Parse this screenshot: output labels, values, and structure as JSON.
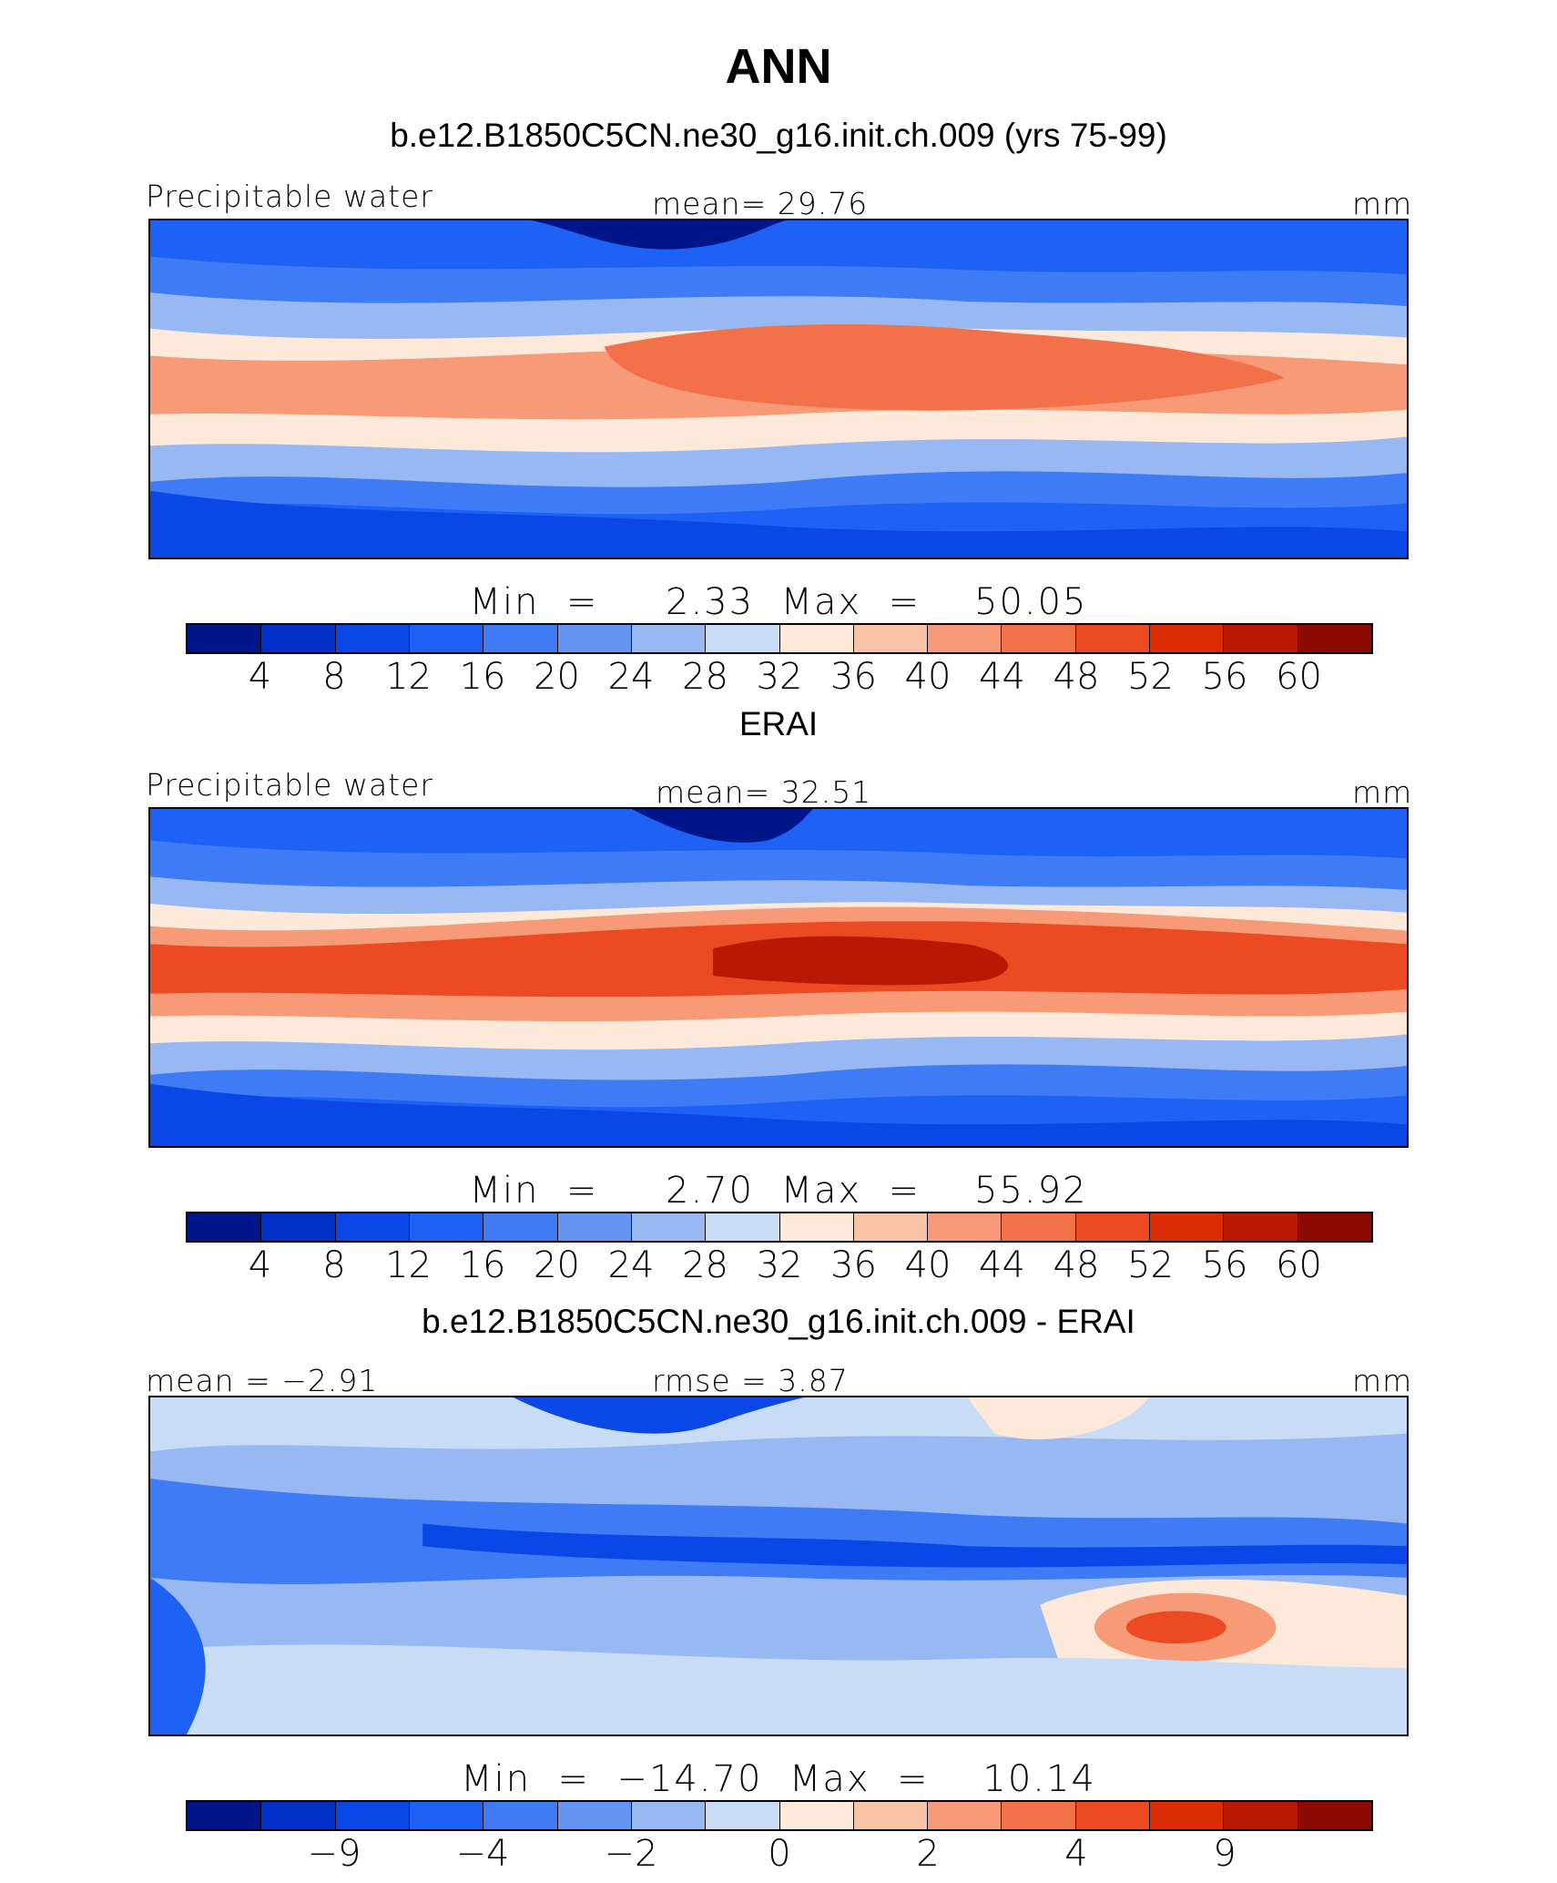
{
  "figure": {
    "title": "ANN"
  },
  "panels": [
    {
      "title": "b.e12.B1850C5CN.ne30_g16.init.ch.009 (yrs 75-99)",
      "left_label": "Precipitable water",
      "center_label": "mean=   29.76",
      "right_label": "mm",
      "minmax": "Min  =     2.33  Max  =    50.05",
      "tick_labels": [
        "4",
        "8",
        "12",
        "16",
        "20",
        "24",
        "28",
        "32",
        "36",
        "40",
        "44",
        "48",
        "52",
        "56",
        "60"
      ],
      "field": "model"
    },
    {
      "title": "ERAI",
      "left_label": "Precipitable water",
      "center_label": "mean=   32.51",
      "right_label": "mm",
      "minmax": "Min  =     2.70  Max  =    55.92",
      "tick_labels": [
        "4",
        "8",
        "12",
        "16",
        "20",
        "24",
        "28",
        "32",
        "36",
        "40",
        "44",
        "48",
        "52",
        "56",
        "60"
      ],
      "field": "obs"
    },
    {
      "title": "b.e12.B1850C5CN.ne30_g16.init.ch.009 - ERAI",
      "left_label": "mean  =   −2.91",
      "center_label": "rmse  =     3.87",
      "right_label": "mm",
      "minmax": "Min  =  −14.70  Max  =    10.14",
      "tick_labels": [
        "−9",
        "−4",
        "−2",
        "0",
        "2",
        "4",
        "9"
      ],
      "field": "diff"
    }
  ],
  "colorbar_colors": [
    "#00158a",
    "#0330c9",
    "#0b47e6",
    "#1e62f5",
    "#3e7bf4",
    "#6595f2",
    "#98b8f3",
    "#c9dcf6",
    "#fde9d9",
    "#f9c3a8",
    "#f69a78",
    "#f2714b",
    "#eb4a22",
    "#dc2d07",
    "#b81804",
    "#8d0a02"
  ],
  "land_outline_color": "#000000"
}
